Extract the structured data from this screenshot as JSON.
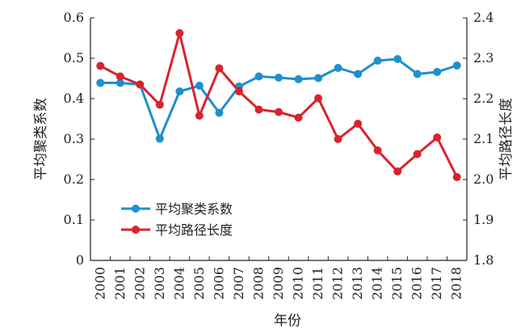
{
  "chart_data": {
    "type": "line",
    "categories": [
      "2000",
      "2001",
      "2002",
      "2003",
      "2004",
      "2005",
      "2006",
      "2007",
      "2008",
      "2009",
      "2010",
      "2011",
      "2012",
      "2013",
      "2014",
      "2015",
      "2016",
      "2017",
      "2018"
    ],
    "series": [
      {
        "name": "平均聚类系数",
        "axis": "left",
        "color": "#1f8fcf",
        "values": [
          0.439,
          0.439,
          0.435,
          0.301,
          0.418,
          0.432,
          0.365,
          0.43,
          0.455,
          0.452,
          0.448,
          0.451,
          0.476,
          0.461,
          0.494,
          0.498,
          0.461,
          0.466,
          0.482
        ]
      },
      {
        "name": "平均路径长度",
        "axis": "right",
        "color": "#d8242e",
        "values": [
          2.281,
          2.255,
          2.235,
          2.185,
          2.362,
          2.158,
          2.275,
          2.218,
          2.173,
          2.167,
          2.153,
          2.201,
          2.1,
          2.138,
          2.072,
          2.02,
          2.063,
          2.104,
          2.006
        ]
      }
    ],
    "xlabel": "年份",
    "ylabel_left": "平均聚类系数",
    "ylabel_right": "平均路径长度",
    "ylim_left": [
      0,
      0.6
    ],
    "ylim_right": [
      1.8,
      2.4
    ],
    "yticks_left": [
      "0",
      "0.1",
      "0.2",
      "0.3",
      "0.4",
      "0.5",
      "0.6"
    ],
    "yticks_right": [
      "1.8",
      "1.9",
      "2.0",
      "2.1",
      "2.2",
      "2.3",
      "2.4"
    ],
    "grid": false,
    "legend_position": "lower-left"
  }
}
